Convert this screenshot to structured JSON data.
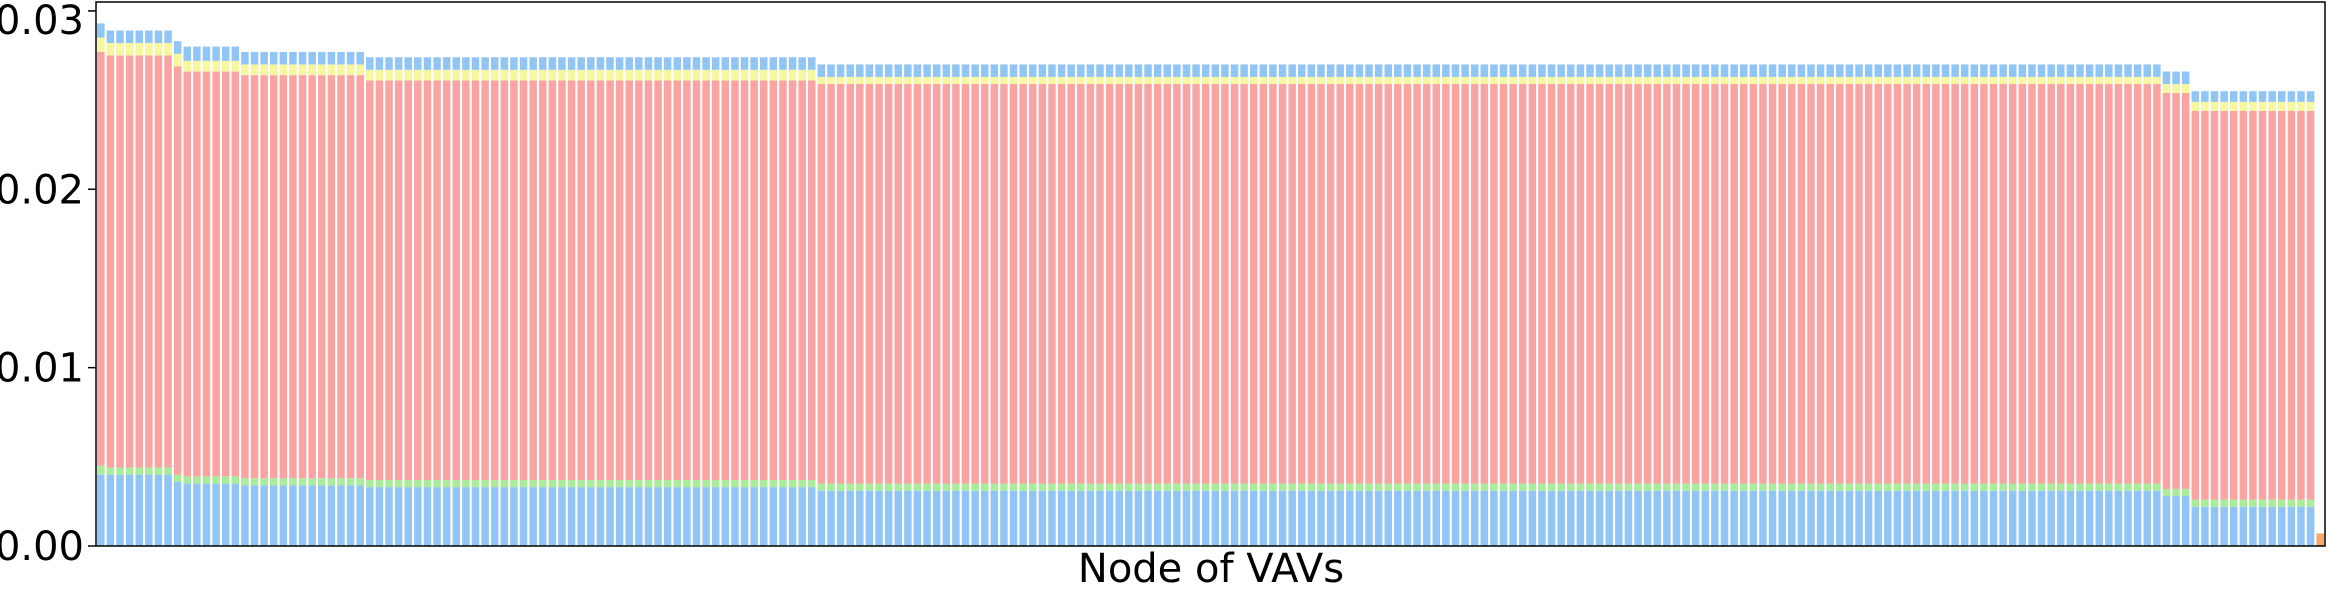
{
  "chart_data": {
    "type": "bar",
    "stacked": true,
    "title": "",
    "xlabel": "Node of VAVs",
    "ylabel": "",
    "ylim": [
      0,
      0.0305
    ],
    "yticks": [
      0,
      0.01,
      0.02,
      0.03
    ],
    "ytick_labels": [
      "0.00",
      "0.01",
      "0.02",
      "0.03"
    ],
    "grid": false,
    "legend": "none",
    "segment_colors": [
      "#90c5f5",
      "#a9ec9a",
      "#f9a3a3",
      "#f7f7a0",
      "#90c5f5"
    ],
    "last_bar_color": "#f7a86a",
    "groups": [
      {
        "count": 1,
        "stack": [
          0.004,
          0.0005,
          0.0232,
          0.0008,
          0.0008
        ]
      },
      {
        "count": 7,
        "stack": [
          0.004,
          0.0004,
          0.0231,
          0.0007,
          0.0007
        ]
      },
      {
        "count": 1,
        "stack": [
          0.0036,
          0.0004,
          0.0229,
          0.0007,
          0.0007
        ]
      },
      {
        "count": 6,
        "stack": [
          0.0035,
          0.0004,
          0.0227,
          0.0006,
          0.0008
        ]
      },
      {
        "count": 13,
        "stack": [
          0.0034,
          0.0004,
          0.0226,
          0.0006,
          0.0007
        ]
      },
      {
        "count": 47,
        "stack": [
          0.0033,
          0.0004,
          0.0224,
          0.0006,
          0.0007
        ]
      },
      {
        "count": 140,
        "stack": [
          0.0031,
          0.0004,
          0.0224,
          0.0004,
          0.0007
        ]
      },
      {
        "count": 3,
        "stack": [
          0.0028,
          0.0004,
          0.0222,
          0.0005,
          0.0007
        ]
      },
      {
        "count": 13,
        "stack": [
          0.0022,
          0.0004,
          0.0218,
          0.0005,
          0.0006
        ]
      },
      {
        "count": 1,
        "stack": [
          0.0,
          0.0,
          0.0,
          0.0,
          0.0007
        ]
      }
    ]
  }
}
